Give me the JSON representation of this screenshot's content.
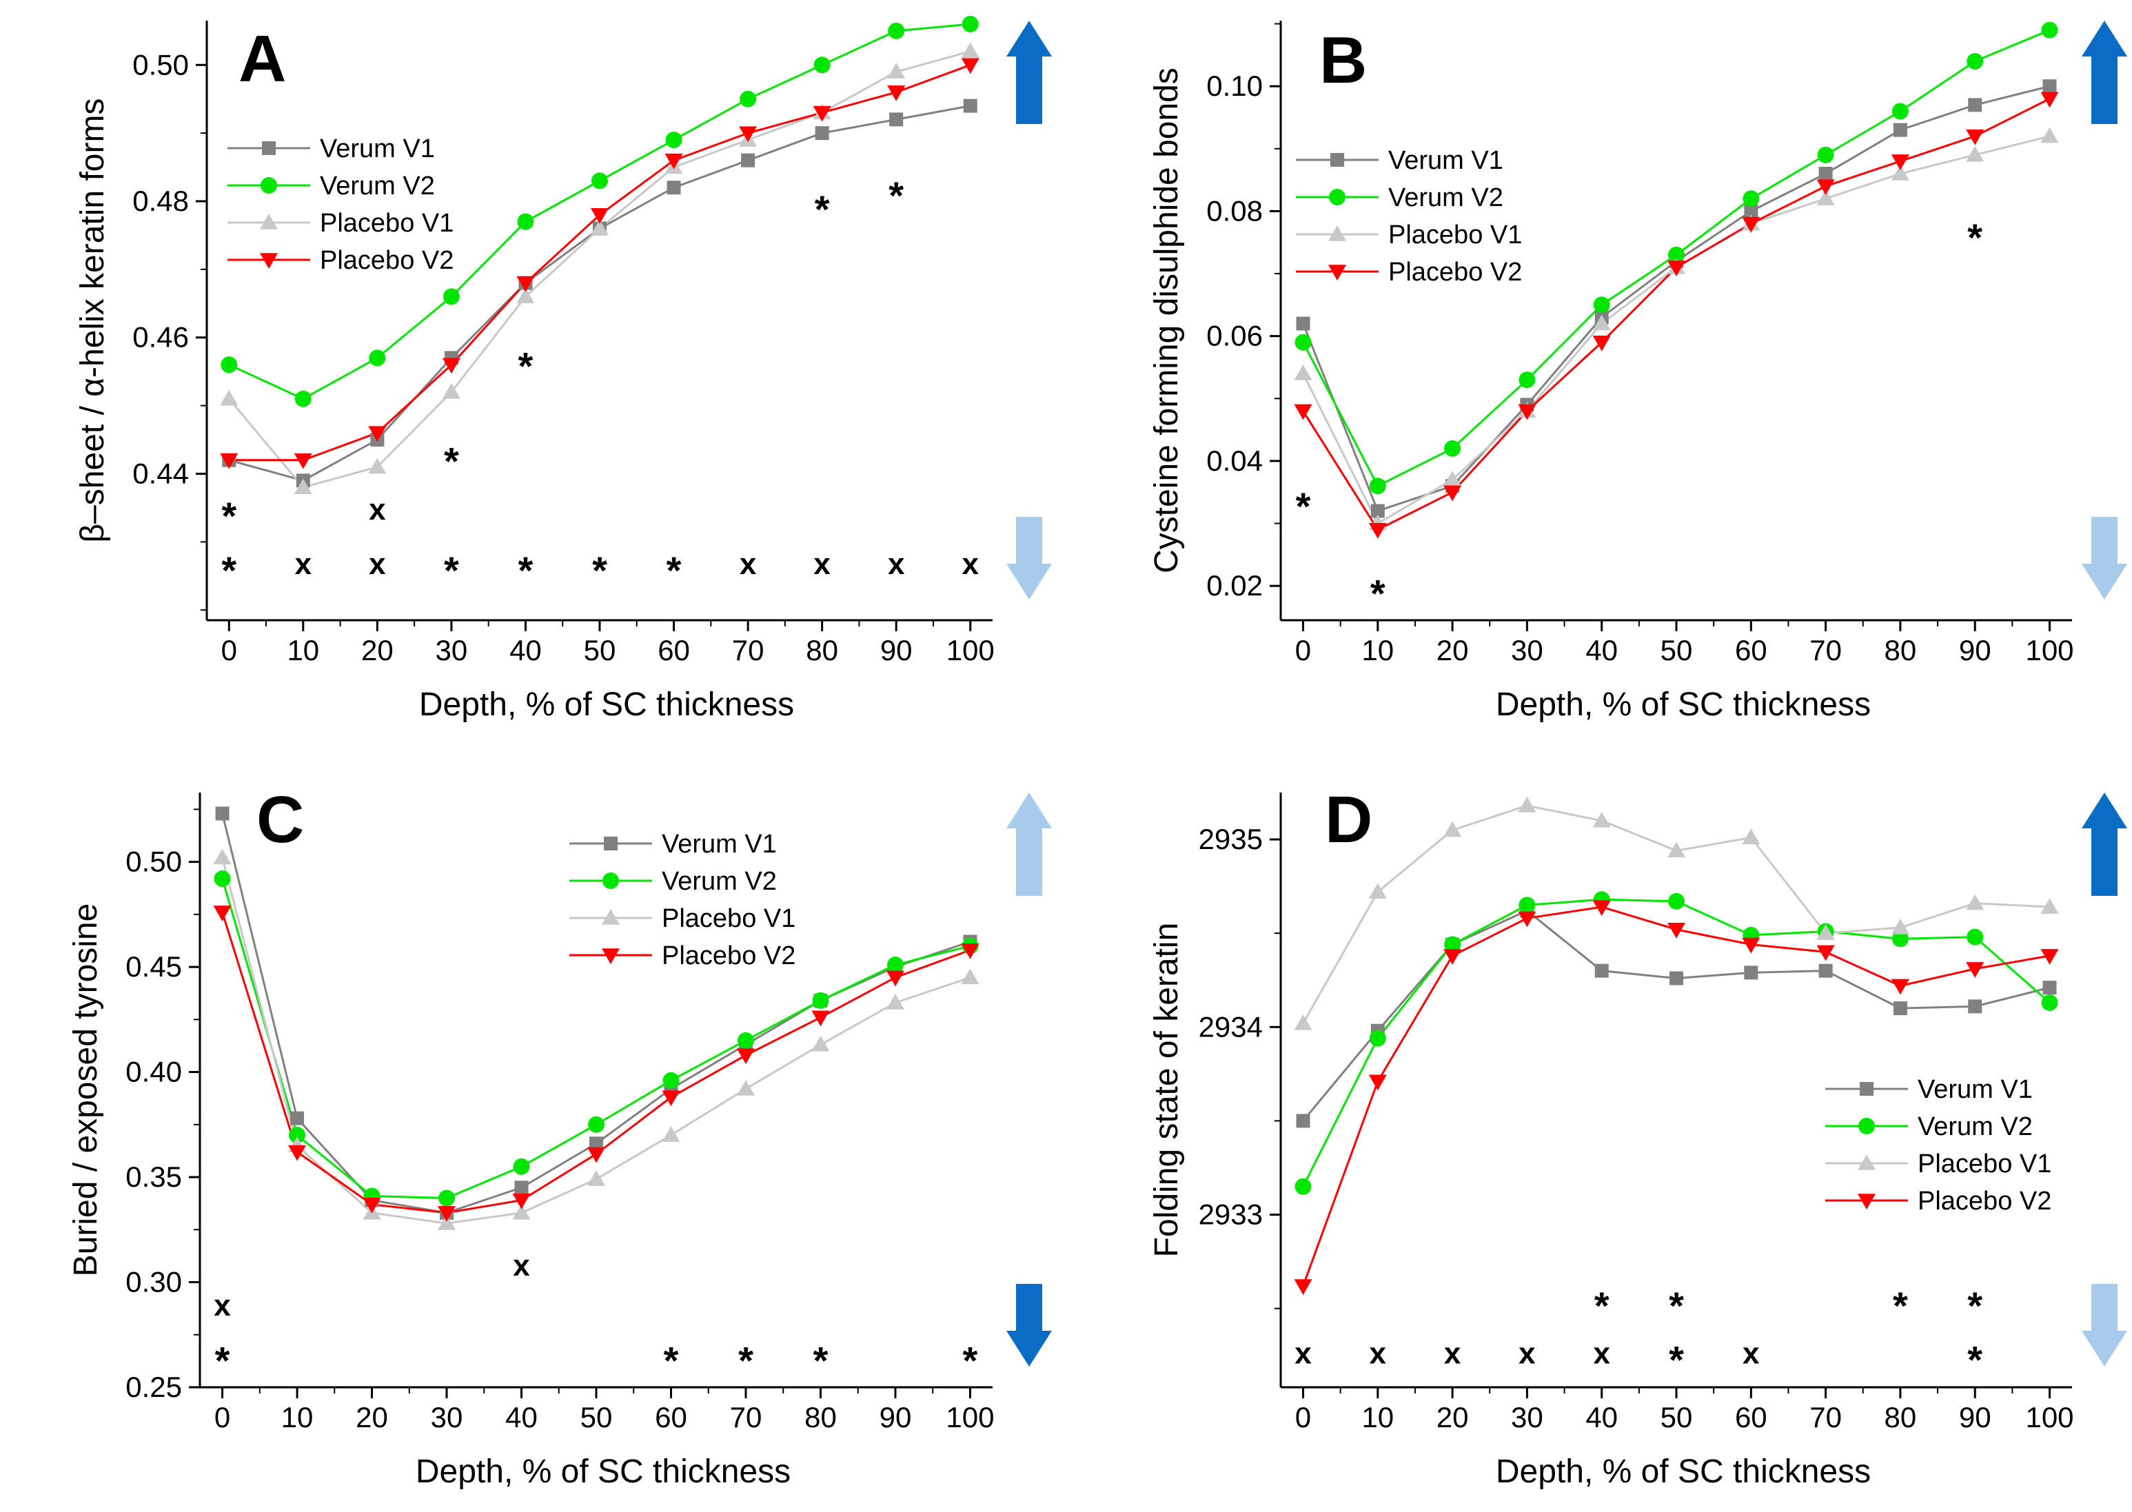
{
  "figure": {
    "series_styles": {
      "Verum V1": {
        "color": "#808080",
        "marker": "square"
      },
      "Verum V2": {
        "color": "#00e600",
        "marker": "circle"
      },
      "Placebo V1": {
        "color": "#c8c8c8",
        "marker": "triangle-up"
      },
      "Placebo V2": {
        "color": "#ff0000",
        "marker": "triangle-down"
      }
    },
    "arrow_colors": {
      "dark": "#0a6cc4",
      "light": "#a9cbeb"
    }
  },
  "chart_data": [
    {
      "id": "A",
      "type": "line",
      "title": "A",
      "xlabel": "Depth, % of SC thickness",
      "ylabel": "β–sheet / α-helix keratin forms",
      "x": [
        0,
        10,
        20,
        30,
        40,
        50,
        60,
        70,
        80,
        90,
        100
      ],
      "xlim": [
        -3,
        103
      ],
      "ylim": [
        0.4185,
        0.5065
      ],
      "yticks": [
        0.44,
        0.46,
        0.48,
        0.5
      ],
      "ytick_labels": [
        "0.44",
        "0.46",
        "0.48",
        "0.50"
      ],
      "xtick_labels": [
        "0",
        "10",
        "20",
        "30",
        "40",
        "50",
        "60",
        "70",
        "80",
        "90",
        "100"
      ],
      "legend_position": "top-left",
      "series": [
        {
          "name": "Verum V1",
          "values": [
            0.442,
            0.439,
            0.445,
            0.457,
            0.468,
            0.476,
            0.482,
            0.486,
            0.49,
            0.492,
            0.494
          ]
        },
        {
          "name": "Verum V2",
          "values": [
            0.456,
            0.451,
            0.457,
            0.466,
            0.477,
            0.483,
            0.489,
            0.495,
            0.5,
            0.505,
            0.506
          ]
        },
        {
          "name": "Placebo V1",
          "values": [
            0.451,
            0.438,
            0.441,
            0.452,
            0.466,
            0.476,
            0.485,
            0.489,
            0.493,
            0.499,
            0.502
          ]
        },
        {
          "name": "Placebo V2",
          "values": [
            0.442,
            0.442,
            0.446,
            0.456,
            0.468,
            0.478,
            0.486,
            0.49,
            0.493,
            0.496,
            0.5
          ]
        }
      ],
      "annotations": [
        {
          "x": 0,
          "y": 0.4345,
          "text": "*",
          "color": "#000000"
        },
        {
          "x": 20,
          "y": 0.4345,
          "text": "x",
          "color": "#000000"
        },
        {
          "x": 30,
          "y": 0.4425,
          "text": "*",
          "color": "#000000"
        },
        {
          "x": 40,
          "y": 0.4565,
          "text": "*",
          "color": "#000000"
        },
        {
          "x": 80,
          "y": 0.4795,
          "text": "*",
          "color": "#000000"
        },
        {
          "x": 90,
          "y": 0.4815,
          "text": "*",
          "color": "#000000"
        },
        {
          "x": 0,
          "y": 0.4265,
          "text": "*",
          "color": "#00e600"
        },
        {
          "x": 10,
          "y": 0.4265,
          "text": "x",
          "color": "#00e600"
        },
        {
          "x": 20,
          "y": 0.4265,
          "text": "x",
          "color": "#00e600"
        },
        {
          "x": 30,
          "y": 0.4265,
          "text": "*",
          "color": "#00e600"
        },
        {
          "x": 40,
          "y": 0.4265,
          "text": "*",
          "color": "#00e600"
        },
        {
          "x": 50,
          "y": 0.4265,
          "text": "*",
          "color": "#00e600"
        },
        {
          "x": 60,
          "y": 0.4265,
          "text": "*",
          "color": "#00e600"
        },
        {
          "x": 70,
          "y": 0.4265,
          "text": "x",
          "color": "#00e600"
        },
        {
          "x": 80,
          "y": 0.4265,
          "text": "x",
          "color": "#00e600"
        },
        {
          "x": 90,
          "y": 0.4265,
          "text": "x",
          "color": "#00e600"
        },
        {
          "x": 100,
          "y": 0.4265,
          "text": "x",
          "color": "#00e600"
        }
      ],
      "arrows": {
        "up": "dark",
        "down": "light"
      }
    },
    {
      "id": "B",
      "type": "line",
      "title": "B",
      "xlabel": "Depth, % of SC thickness",
      "ylabel": "Cysteine forming disulphide bonds",
      "x": [
        0,
        10,
        20,
        30,
        40,
        50,
        60,
        70,
        80,
        90,
        100
      ],
      "xlim": [
        -3,
        103
      ],
      "ylim": [
        0.0145,
        0.1105
      ],
      "yticks": [
        0.02,
        0.04,
        0.06,
        0.08,
        0.1
      ],
      "ytick_labels": [
        "0.02",
        "0.04",
        "0.06",
        "0.08",
        "0.10"
      ],
      "xtick_labels": [
        "0",
        "10",
        "20",
        "30",
        "40",
        "50",
        "60",
        "70",
        "80",
        "90",
        "100"
      ],
      "legend_position": "top-left",
      "series": [
        {
          "name": "Verum V1",
          "values": [
            0.062,
            0.032,
            0.036,
            0.049,
            0.063,
            0.072,
            0.08,
            0.086,
            0.093,
            0.097,
            0.1
          ]
        },
        {
          "name": "Verum V2",
          "values": [
            0.059,
            0.036,
            0.042,
            0.053,
            0.065,
            0.073,
            0.082,
            0.089,
            0.096,
            0.104,
            0.109
          ]
        },
        {
          "name": "Placebo V1",
          "values": [
            0.054,
            0.03,
            0.037,
            0.048,
            0.062,
            0.071,
            0.078,
            0.082,
            0.086,
            0.089,
            0.092
          ]
        },
        {
          "name": "Placebo V2",
          "values": [
            0.048,
            0.029,
            0.035,
            0.048,
            0.059,
            0.071,
            0.078,
            0.084,
            0.088,
            0.092,
            0.098
          ]
        }
      ],
      "annotations": [
        {
          "x": 0,
          "y": 0.0335,
          "text": "*",
          "color": "#000000"
        },
        {
          "x": 10,
          "y": 0.0195,
          "text": "*",
          "color": "#000000"
        },
        {
          "x": 90,
          "y": 0.0765,
          "text": "*",
          "color": "#000000"
        }
      ],
      "arrows": {
        "up": "dark",
        "down": "light"
      }
    },
    {
      "id": "C",
      "type": "line",
      "title": "C",
      "xlabel": "Depth, % of SC thickness",
      "ylabel": "Buried / exposed tyrosine",
      "x": [
        0,
        10,
        20,
        30,
        40,
        50,
        60,
        70,
        80,
        90,
        100
      ],
      "xlim": [
        -3,
        103
      ],
      "ylim": [
        0.25,
        0.533
      ],
      "yticks": [
        0.25,
        0.3,
        0.35,
        0.4,
        0.45,
        0.5
      ],
      "ytick_labels": [
        "0.25",
        "0.30",
        "0.35",
        "0.40",
        "0.45",
        "0.50"
      ],
      "xtick_labels": [
        "0",
        "10",
        "20",
        "30",
        "40",
        "50",
        "60",
        "70",
        "80",
        "90",
        "100"
      ],
      "legend_position": "top-right",
      "series": [
        {
          "name": "Verum V1",
          "values": [
            0.523,
            0.378,
            0.339,
            0.333,
            0.345,
            0.366,
            0.392,
            0.413,
            0.434,
            0.45,
            0.462
          ]
        },
        {
          "name": "Verum V2",
          "values": [
            0.492,
            0.37,
            0.341,
            0.34,
            0.355,
            0.375,
            0.396,
            0.415,
            0.434,
            0.451,
            0.46
          ]
        },
        {
          "name": "Placebo V1",
          "values": [
            0.502,
            0.365,
            0.333,
            0.328,
            0.333,
            0.349,
            0.37,
            0.392,
            0.413,
            0.433,
            0.445
          ]
        },
        {
          "name": "Placebo V2",
          "values": [
            0.476,
            0.362,
            0.337,
            0.333,
            0.339,
            0.361,
            0.388,
            0.408,
            0.426,
            0.445,
            0.458
          ]
        }
      ],
      "annotations": [
        {
          "x": 40,
          "y": 0.307,
          "text": "x",
          "color": "#000000"
        },
        {
          "x": 0,
          "y": 0.288,
          "text": "x",
          "color": "#00e600"
        },
        {
          "x": 0,
          "y": 0.265,
          "text": "*",
          "color": "#ff0000"
        },
        {
          "x": 60,
          "y": 0.265,
          "text": "*",
          "color": "#ff0000"
        },
        {
          "x": 70,
          "y": 0.265,
          "text": "*",
          "color": "#ff0000"
        },
        {
          "x": 80,
          "y": 0.265,
          "text": "*",
          "color": "#ff0000"
        },
        {
          "x": 100,
          "y": 0.265,
          "text": "*",
          "color": "#ff0000"
        }
      ],
      "arrows": {
        "up": "light",
        "down": "dark"
      }
    },
    {
      "id": "D",
      "type": "line",
      "title": "D",
      "xlabel": "Depth, % of SC thickness",
      "ylabel": "Folding state of keratin",
      "x": [
        0,
        10,
        20,
        30,
        40,
        50,
        60,
        70,
        80,
        90,
        100
      ],
      "xlim": [
        -3,
        103
      ],
      "ylim": [
        2932.08,
        2935.25
      ],
      "yticks": [
        2933,
        2934,
        2935
      ],
      "ytick_labels": [
        "2933",
        "2934",
        "2935"
      ],
      "xtick_labels": [
        "0",
        "10",
        "20",
        "30",
        "40",
        "50",
        "60",
        "70",
        "80",
        "90",
        "100"
      ],
      "legend_position": "bottom-right",
      "series": [
        {
          "name": "Verum V1",
          "values": [
            2933.5,
            2933.98,
            2934.44,
            2934.62,
            2934.3,
            2934.26,
            2934.29,
            2934.3,
            2934.1,
            2934.11,
            2934.21
          ]
        },
        {
          "name": "Verum V2",
          "values": [
            2933.15,
            2933.94,
            2934.44,
            2934.65,
            2934.68,
            2934.67,
            2934.49,
            2934.51,
            2934.47,
            2934.48,
            2934.13
          ]
        },
        {
          "name": "Placebo V1",
          "values": [
            2934.02,
            2934.72,
            2935.05,
            2935.18,
            2935.1,
            2934.94,
            2935.01,
            2934.5,
            2934.53,
            2934.66,
            2934.64
          ]
        },
        {
          "name": "Placebo V2",
          "values": [
            2932.62,
            2933.71,
            2934.38,
            2934.58,
            2934.64,
            2934.52,
            2934.44,
            2934.4,
            2934.22,
            2934.31,
            2934.38
          ]
        }
      ],
      "annotations": [
        {
          "x": 40,
          "y": 2932.54,
          "text": "*",
          "color": "#00e600"
        },
        {
          "x": 50,
          "y": 2932.54,
          "text": "*",
          "color": "#00e600"
        },
        {
          "x": 80,
          "y": 2932.54,
          "text": "*",
          "color": "#00e600"
        },
        {
          "x": 90,
          "y": 2932.54,
          "text": "*",
          "color": "#00e600"
        },
        {
          "x": 0,
          "y": 2932.25,
          "text": "x",
          "color": "#ff0000"
        },
        {
          "x": 10,
          "y": 2932.25,
          "text": "x",
          "color": "#ff0000"
        },
        {
          "x": 20,
          "y": 2932.25,
          "text": "x",
          "color": "#ff0000"
        },
        {
          "x": 30,
          "y": 2932.25,
          "text": "x",
          "color": "#ff0000"
        },
        {
          "x": 40,
          "y": 2932.25,
          "text": "x",
          "color": "#ff0000"
        },
        {
          "x": 50,
          "y": 2932.25,
          "text": "*",
          "color": "#ff0000"
        },
        {
          "x": 60,
          "y": 2932.25,
          "text": "x",
          "color": "#ff0000"
        },
        {
          "x": 90,
          "y": 2932.25,
          "text": "*",
          "color": "#ff0000"
        }
      ],
      "arrows": {
        "up": "dark",
        "down": "light"
      }
    }
  ]
}
